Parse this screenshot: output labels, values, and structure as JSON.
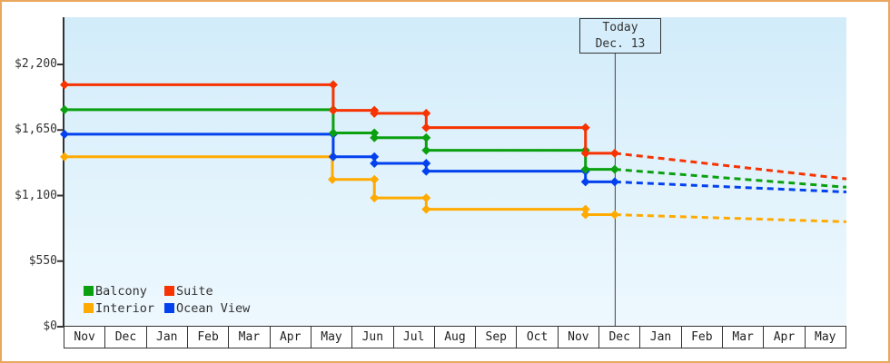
{
  "chart_data": {
    "type": "line",
    "line_style": "step",
    "title": "",
    "xlabel": "",
    "ylabel": "",
    "grid": false,
    "legend_position": "bottom-left",
    "x_categories": [
      "Nov",
      "Dec",
      "Jan",
      "Feb",
      "Mar",
      "Apr",
      "May",
      "Jun",
      "Jul",
      "Aug",
      "Sep",
      "Oct",
      "Nov",
      "Dec",
      "Jan",
      "Feb",
      "Mar",
      "Apr",
      "May"
    ],
    "x_months_total": 19,
    "y_ticks": [
      {
        "value": 2200,
        "label": "$2,200"
      },
      {
        "value": 1650,
        "label": "$1,650"
      },
      {
        "value": 1100,
        "label": "$1,100"
      },
      {
        "value": 550,
        "label": "$550"
      },
      {
        "value": 0,
        "label": "$0"
      }
    ],
    "ylim": [
      0,
      2600
    ],
    "today": {
      "label_line1": "Today",
      "label_line2": "Dec. 13",
      "month_x": 13.37
    },
    "series": [
      {
        "name": "Interior",
        "color": "#ffaa00",
        "start_value": 1425,
        "steps": [
          [
            6.51,
            1235
          ],
          [
            7.53,
            1080
          ],
          [
            8.79,
            985
          ],
          [
            12.66,
            940
          ]
        ],
        "value_today": 940,
        "projected_value_end": 880
      },
      {
        "name": "Ocean View",
        "color": "#0341ee",
        "start_value": 1615,
        "steps": [
          [
            6.53,
            1425
          ],
          [
            7.53,
            1370
          ],
          [
            8.79,
            1305
          ],
          [
            12.66,
            1215
          ]
        ],
        "value_today": 1215,
        "projected_value_end": 1130
      },
      {
        "name": "Balcony",
        "color": "#0ba010",
        "start_value": 1820,
        "steps": [
          [
            6.53,
            1625
          ],
          [
            7.53,
            1585
          ],
          [
            8.79,
            1480
          ],
          [
            12.66,
            1320
          ]
        ],
        "value_today": 1320,
        "projected_value_end": 1170
      },
      {
        "name": "Suite",
        "color": "#f63301",
        "start_value": 2030,
        "steps": [
          [
            6.53,
            1815
          ],
          [
            7.53,
            1790
          ],
          [
            8.79,
            1670
          ],
          [
            12.66,
            1455
          ]
        ],
        "value_today": 1455,
        "projected_value_end": 1240
      }
    ],
    "legend": [
      "Balcony",
      "Suite",
      "Interior",
      "Ocean View"
    ]
  },
  "colors": {
    "frame_border": "#eaa75e",
    "plot_gradient_top": "#d2ecfa",
    "plot_gradient_bottom": "#eef8fe",
    "axis": "#333333",
    "today_line": "#444444",
    "text": "#333333"
  }
}
